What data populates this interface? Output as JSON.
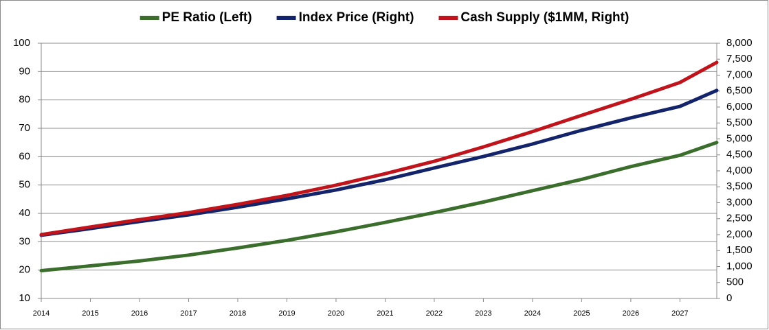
{
  "chart_data": {
    "type": "line",
    "x": [
      2014,
      2015,
      2016,
      2017,
      2018,
      2019,
      2020,
      2021,
      2022,
      2023,
      2024,
      2025,
      2026,
      2027,
      2027.75
    ],
    "xlim": [
      2014,
      2027.75
    ],
    "xticks": [
      2014,
      2015,
      2016,
      2017,
      2018,
      2019,
      2020,
      2021,
      2022,
      2023,
      2024,
      2025,
      2026,
      2027
    ],
    "ylim": [
      10,
      100
    ],
    "yticks": [
      10,
      20,
      30,
      40,
      50,
      60,
      70,
      80,
      90,
      100
    ],
    "y2lim": [
      0,
      8000
    ],
    "y2ticks": [
      0,
      500,
      {
        "value": 1000,
        "label": "1,000"
      },
      {
        "value": 1500,
        "label": "1,500"
      },
      {
        "value": 2000,
        "label": "2,000"
      },
      {
        "value": 2500,
        "label": "2,500"
      },
      {
        "value": 3000,
        "label": "3,000"
      },
      {
        "value": 3500,
        "label": "3,500"
      },
      {
        "value": 4000,
        "label": "4,000"
      },
      {
        "value": 4500,
        "label": "4,500"
      },
      {
        "value": 5000,
        "label": "5,000"
      },
      {
        "value": 5500,
        "label": "5,500"
      },
      {
        "value": 6000,
        "label": "6,000"
      },
      {
        "value": 6500,
        "label": "6,500"
      },
      {
        "value": 7000,
        "label": "7,000"
      },
      {
        "value": 7500,
        "label": "7,500"
      },
      {
        "value": 8000,
        "label": "8,000"
      }
    ],
    "grid": true,
    "legend": "top",
    "series": [
      {
        "name": "PE Ratio (Left)",
        "color": "#3b6e2c",
        "values": [
          19.8,
          21.5,
          23.2,
          25.3,
          27.8,
          30.5,
          33.5,
          36.8,
          40.3,
          44,
          48,
          52,
          56.5,
          60.5,
          65
        ]
      },
      {
        "name": "Index Price (Right)",
        "color": "#14246b",
        "axis": "y2",
        "values": [
          1980,
          2190,
          2410,
          2620,
          2860,
          3120,
          3400,
          3720,
          4090,
          4450,
          4840,
          5270,
          5660,
          6020,
          6520
        ]
      },
      {
        "name": "Cash Supply ($1MM, Right)",
        "color": "#c0141c",
        "axis": "y2",
        "values": [
          2000,
          2240,
          2470,
          2690,
          2950,
          3230,
          3550,
          3910,
          4300,
          4750,
          5230,
          5740,
          6240,
          6770,
          7400
        ]
      }
    ]
  }
}
